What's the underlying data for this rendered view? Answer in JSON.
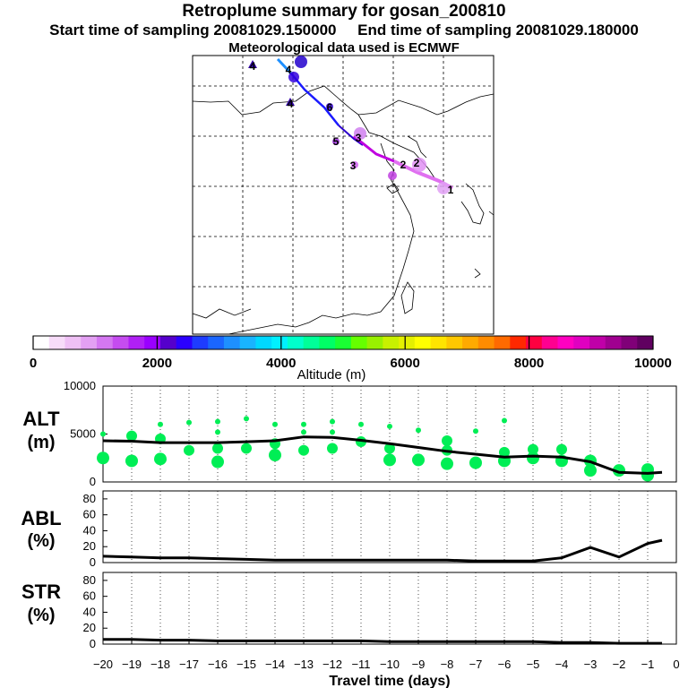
{
  "header": {
    "title": "Retroplume summary for gosan_200810",
    "start_label": "Start time of sampling 20081029.150000",
    "end_label": "End time of sampling 20081029.180000",
    "met_label": "Meteorological data used is ECMWF"
  },
  "colorbar": {
    "ticks": [
      "0",
      "2000",
      "4000",
      "6000",
      "8000",
      "10000"
    ],
    "label": "Altitude (m)",
    "colors": [
      "#ffffff",
      "#f7dcf9",
      "#efc0f5",
      "#e3a0f3",
      "#d477f1",
      "#c54cf0",
      "#b020f5",
      "#9a00ff",
      "#5500cc",
      "#2b00ff",
      "#1e3cff",
      "#1a66ff",
      "#1e90ff",
      "#19b4ff",
      "#00d8ff",
      "#00f0ff",
      "#00ffcc",
      "#00ff99",
      "#00ff66",
      "#1aff33",
      "#66ff00",
      "#99f000",
      "#c8f000",
      "#e4f000",
      "#ffff00",
      "#ffe400",
      "#ffc800",
      "#ffaa00",
      "#ff8c00",
      "#ff6a00",
      "#ff2800",
      "#ff0040",
      "#ff0090",
      "#ff00c0",
      "#e000c0",
      "#c000a8",
      "#a00090",
      "#800078",
      "#600060"
    ]
  },
  "map": {
    "labels": [
      {
        "text": "1"
      },
      {
        "text": "2"
      },
      {
        "text": "2"
      },
      {
        "text": "3"
      },
      {
        "text": "3"
      },
      {
        "text": "4"
      },
      {
        "text": "4"
      },
      {
        "text": "4"
      },
      {
        "text": "5"
      },
      {
        "text": "6"
      }
    ]
  },
  "chart_data": [
    {
      "type": "line",
      "panel": "ALT",
      "ylabel": "ALT\n(m)",
      "ylim": [
        0,
        10000
      ],
      "yticks": [
        "0",
        "5000",
        "10000"
      ],
      "x": [
        -20,
        -19,
        -18,
        -17,
        -16,
        -15,
        -14,
        -13,
        -12,
        -11,
        -10,
        -9,
        -8,
        -7,
        -6,
        -5,
        -4,
        -3,
        -2,
        -1,
        -0.5
      ],
      "values": [
        4300,
        4250,
        4100,
        4100,
        4100,
        4200,
        4300,
        4700,
        4650,
        4350,
        4000,
        3600,
        3200,
        2900,
        2600,
        2700,
        2600,
        2100,
        1000,
        900,
        1000
      ],
      "scatter": [
        {
          "x": -20,
          "y": 5000
        },
        {
          "x": -20,
          "y": 2500
        },
        {
          "x": -19,
          "y": 4800
        },
        {
          "x": -19,
          "y": 2200
        },
        {
          "x": -18,
          "y": 6000
        },
        {
          "x": -18,
          "y": 4500
        },
        {
          "x": -18,
          "y": 2400
        },
        {
          "x": -17,
          "y": 6200
        },
        {
          "x": -17,
          "y": 3300
        },
        {
          "x": -16,
          "y": 6300
        },
        {
          "x": -16,
          "y": 5200
        },
        {
          "x": -16,
          "y": 3500
        },
        {
          "x": -16,
          "y": 2100
        },
        {
          "x": -15,
          "y": 6600
        },
        {
          "x": -15,
          "y": 3500
        },
        {
          "x": -14,
          "y": 6000
        },
        {
          "x": -14,
          "y": 4000
        },
        {
          "x": -14,
          "y": 2800
        },
        {
          "x": -13,
          "y": 6000
        },
        {
          "x": -13,
          "y": 5200
        },
        {
          "x": -13,
          "y": 3300
        },
        {
          "x": -12,
          "y": 6300
        },
        {
          "x": -12,
          "y": 5200
        },
        {
          "x": -12,
          "y": 3500
        },
        {
          "x": -11,
          "y": 6000
        },
        {
          "x": -11,
          "y": 4200
        },
        {
          "x": -10,
          "y": 5800
        },
        {
          "x": -10,
          "y": 3500
        },
        {
          "x": -10,
          "y": 2300
        },
        {
          "x": -9,
          "y": 5400
        },
        {
          "x": -9,
          "y": 2300
        },
        {
          "x": -8,
          "y": 4300
        },
        {
          "x": -8,
          "y": 3300
        },
        {
          "x": -8,
          "y": 1900
        },
        {
          "x": -7,
          "y": 5300
        },
        {
          "x": -7,
          "y": 2000
        },
        {
          "x": -6,
          "y": 6400
        },
        {
          "x": -6,
          "y": 3100
        },
        {
          "x": -6,
          "y": 2200
        },
        {
          "x": -5,
          "y": 3400
        },
        {
          "x": -5,
          "y": 2500
        },
        {
          "x": -4,
          "y": 3400
        },
        {
          "x": -4,
          "y": 2200
        },
        {
          "x": -3,
          "y": 2200
        },
        {
          "x": -3,
          "y": 1200
        },
        {
          "x": -2,
          "y": 1200
        },
        {
          "x": -1,
          "y": 1300
        },
        {
          "x": -1,
          "y": 700
        }
      ]
    },
    {
      "type": "line",
      "panel": "ABL",
      "ylabel": "ABL\n(%)",
      "ylim": [
        0,
        90
      ],
      "yticks": [
        "0",
        "20",
        "40",
        "60",
        "80"
      ],
      "x": [
        -20,
        -19,
        -18,
        -17,
        -16,
        -15,
        -14,
        -13,
        -12,
        -11,
        -10,
        -9,
        -8,
        -7,
        -6,
        -5,
        -4,
        -3,
        -2,
        -1,
        -0.5
      ],
      "values": [
        8,
        7,
        6,
        6,
        5,
        4,
        3,
        3,
        3,
        3,
        3,
        3,
        3,
        2,
        2,
        2,
        6,
        19,
        7,
        24,
        28
      ]
    },
    {
      "type": "line",
      "panel": "STR",
      "ylabel": "STR\n(%)",
      "ylim": [
        0,
        90
      ],
      "yticks": [
        "0",
        "20",
        "40",
        "60",
        "80"
      ],
      "x": [
        -20,
        -19,
        -18,
        -17,
        -16,
        -15,
        -14,
        -13,
        -12,
        -11,
        -10,
        -9,
        -8,
        -7,
        -6,
        -5,
        -4,
        -3,
        -2,
        -1,
        -0.5
      ],
      "values": [
        6,
        6,
        5,
        5,
        4,
        4,
        4,
        4,
        4,
        4,
        3,
        3,
        3,
        3,
        3,
        3,
        2,
        2,
        1,
        1,
        1
      ],
      "xlabel": "Travel time (days)",
      "xticks": [
        "-20",
        "-19",
        "-18",
        "-17",
        "-16",
        "-15",
        "-14",
        "-13",
        "-12",
        "-11",
        "-10",
        "-9",
        "-8",
        "-7",
        "-6",
        "-5",
        "-4",
        "-3",
        "-2",
        "-1",
        "0"
      ]
    }
  ],
  "colors": {
    "scatter": "#00ee55",
    "line": "#000000"
  }
}
